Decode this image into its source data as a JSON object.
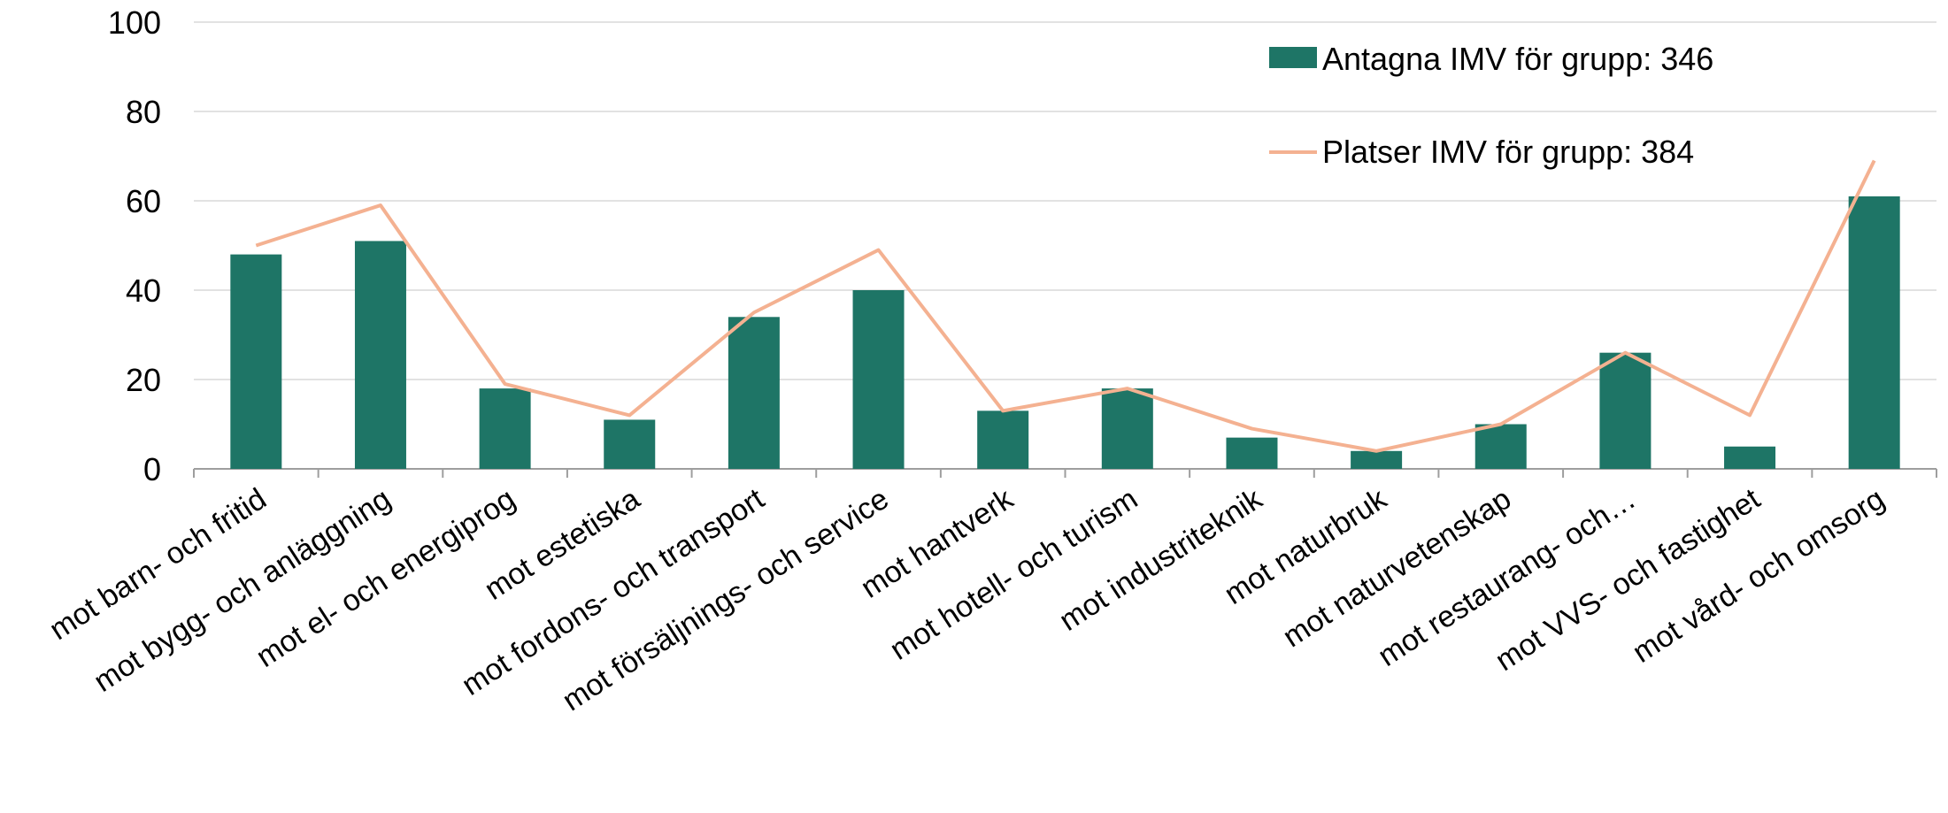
{
  "chart_data": {
    "type": "bar",
    "categories": [
      "mot barn- och fritid",
      "mot bygg- och anläggning",
      "mot el- och energiprog",
      "mot estetiska",
      "mot fordons- och transport",
      "mot försäljnings- och service",
      "mot hantverk",
      "mot hotell- och turism",
      "mot industriteknik",
      "mot naturbruk",
      "mot naturvetenskap",
      "mot restaurang- och…",
      "mot VVS- och fastighet",
      "mot vård- och omsorg"
    ],
    "series": [
      {
        "name": "Antagna IMV för grupp: 346",
        "type": "bar",
        "color": "#1e7566",
        "values": [
          48,
          51,
          18,
          11,
          34,
          40,
          13,
          18,
          7,
          4,
          10,
          26,
          5,
          61
        ]
      },
      {
        "name": "Platser IMV för grupp: 384",
        "type": "line",
        "color": "#f4b191",
        "values": [
          50,
          59,
          19,
          12,
          35,
          49,
          13,
          18,
          9,
          4,
          10,
          26,
          12,
          69
        ]
      }
    ],
    "yticks": [
      "0",
      "20",
      "40",
      "60",
      "80",
      "100"
    ],
    "ylim": [
      0,
      100
    ],
    "grid": true,
    "legend_position": "top-right"
  }
}
